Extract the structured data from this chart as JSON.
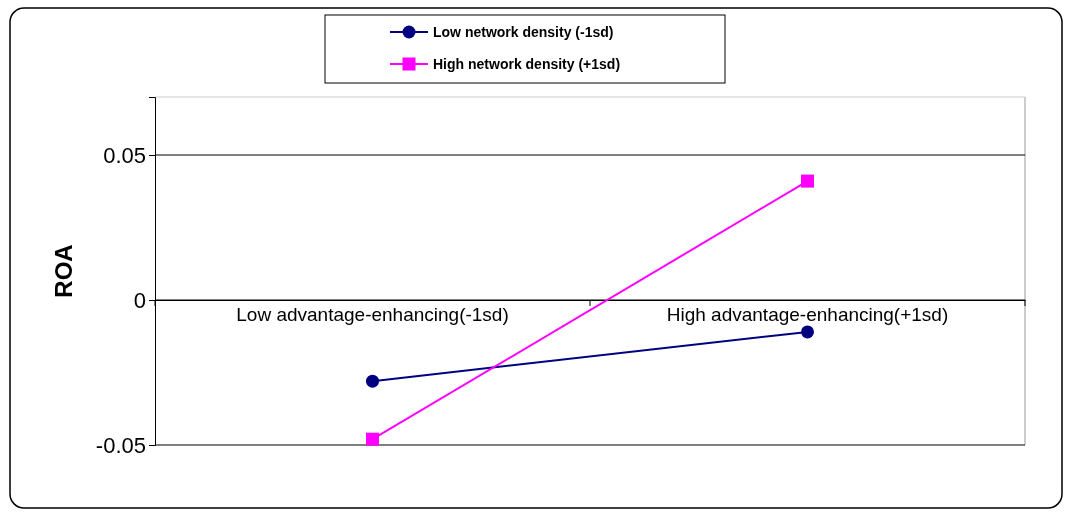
{
  "chart_data": {
    "type": "line",
    "ylabel": "ROA",
    "categories": [
      "Low advantage-enhancing(-1sd)",
      "High advantage-enhancing(+1sd)"
    ],
    "series": [
      {
        "name": "Low network density (-1sd)",
        "color": "#000080",
        "values": [
          -0.028,
          -0.011
        ],
        "marker": "circle"
      },
      {
        "name": "High network density (+1sd)",
        "color": "#ff00ff",
        "values": [
          -0.048,
          0.041
        ],
        "marker": "square"
      }
    ],
    "ylim": [
      -0.05,
      0.07
    ],
    "yticks": [
      -0.05,
      0,
      0.05
    ],
    "grid": "y",
    "legend": "top",
    "line_style": "solid"
  }
}
